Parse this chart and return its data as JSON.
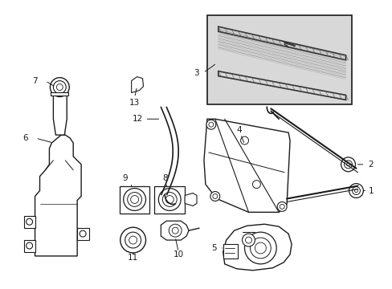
{
  "bg_color": "#ffffff",
  "fig_width": 4.89,
  "fig_height": 3.6,
  "dpi": 100,
  "lc": "#1a1a1a",
  "label_fontsize": 7.5,
  "box_bg": "#e8e8e8"
}
